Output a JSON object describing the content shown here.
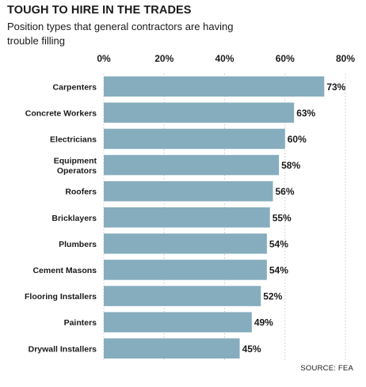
{
  "chart_data": {
    "type": "bar",
    "orientation": "horizontal",
    "title": "TOUGH TO HIRE IN THE TRADES",
    "subtitle": "Position types that general contractors are having trouble filling",
    "source": "SOURCE: FEA",
    "categories": [
      "Carpenters",
      "Concrete Workers",
      "Electricians",
      "Equipment Operators",
      "Roofers",
      "Bricklayers",
      "Plumbers",
      "Cement Masons",
      "Flooring Installers",
      "Painters",
      "Drywall Installers"
    ],
    "values": [
      73,
      63,
      60,
      58,
      56,
      55,
      54,
      54,
      52,
      49,
      45
    ],
    "value_labels": [
      "73%",
      "63%",
      "60%",
      "58%",
      "56%",
      "55%",
      "54%",
      "54%",
      "52%",
      "49%",
      "45%"
    ],
    "xticks": [
      0,
      20,
      40,
      60,
      80
    ],
    "xtick_labels": [
      "0%",
      "20%",
      "40%",
      "60%",
      "80%"
    ],
    "xlim": [
      0,
      80
    ],
    "xlabel": "",
    "ylabel": "",
    "grid": "vertical dotted",
    "bar_color": "#86adbd",
    "grid_color": "#c8c8c8"
  }
}
